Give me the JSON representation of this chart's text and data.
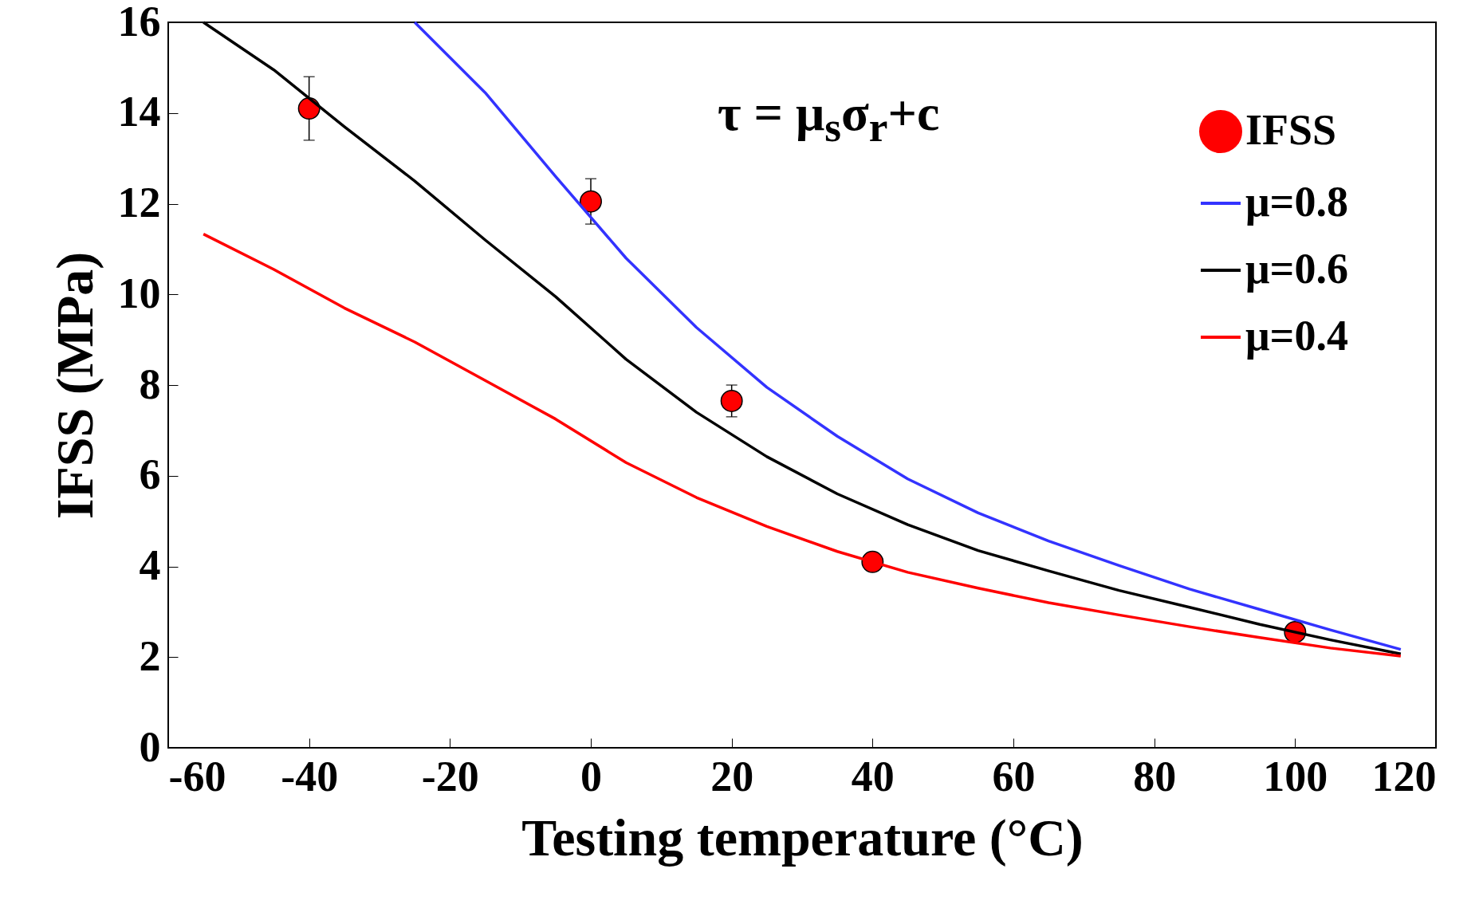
{
  "chart_data": {
    "type": "line",
    "xlabel": "Testing temperature (°C)",
    "ylabel": "IFSS (MPa)",
    "xlim": [
      -60,
      120
    ],
    "ylim": [
      0,
      16
    ],
    "xticks": [
      -60,
      -40,
      -20,
      0,
      20,
      40,
      60,
      80,
      100,
      120
    ],
    "yticks": [
      0,
      2,
      4,
      6,
      8,
      10,
      12,
      14,
      16
    ],
    "grid": false,
    "legend": "top right",
    "annotations": [
      "τ = μ$_{s}$σ$_{r}$+c"
    ],
    "series": [
      {
        "name": "IFSS",
        "type": "scatter",
        "marker": "circle",
        "color": "#ff0000",
        "x": [
          -40,
          0,
          20,
          40,
          100
        ],
        "values": [
          14.1,
          12.05,
          7.65,
          4.1,
          2.55
        ],
        "errors": [
          0.7,
          0.5,
          0.35,
          null,
          null
        ]
      },
      {
        "name": "μ=0.8",
        "color": "#3333ff",
        "x": [
          -25,
          -15,
          -5,
          5,
          15,
          25,
          35,
          45,
          55,
          65,
          75,
          85,
          95,
          105,
          115
        ],
        "values": [
          16,
          14.45,
          12.6,
          10.8,
          9.27,
          7.95,
          6.87,
          5.93,
          5.18,
          4.56,
          4.02,
          3.5,
          3.05,
          2.6,
          2.17
        ]
      },
      {
        "name": "μ=0.6",
        "color": "#000000",
        "x": [
          -55,
          -45,
          -35,
          -25,
          -15,
          -5,
          5,
          15,
          25,
          35,
          45,
          55,
          65,
          75,
          85,
          95,
          105,
          115
        ],
        "values": [
          16,
          14.95,
          13.7,
          12.5,
          11.2,
          9.95,
          8.57,
          7.4,
          6.42,
          5.6,
          4.92,
          4.35,
          3.9,
          3.47,
          3.1,
          2.72,
          2.38,
          2.07
        ]
      },
      {
        "name": "μ=0.4",
        "color": "#ff0000",
        "x": [
          -55,
          -45,
          -35,
          -25,
          -15,
          -5,
          5,
          15,
          25,
          35,
          45,
          55,
          65,
          75,
          85,
          95,
          105,
          115
        ],
        "values": [
          11.33,
          10.55,
          9.7,
          8.95,
          8.1,
          7.25,
          6.29,
          5.52,
          4.88,
          4.33,
          3.87,
          3.52,
          3.2,
          2.93,
          2.67,
          2.43,
          2.2,
          2.02
        ]
      }
    ]
  }
}
